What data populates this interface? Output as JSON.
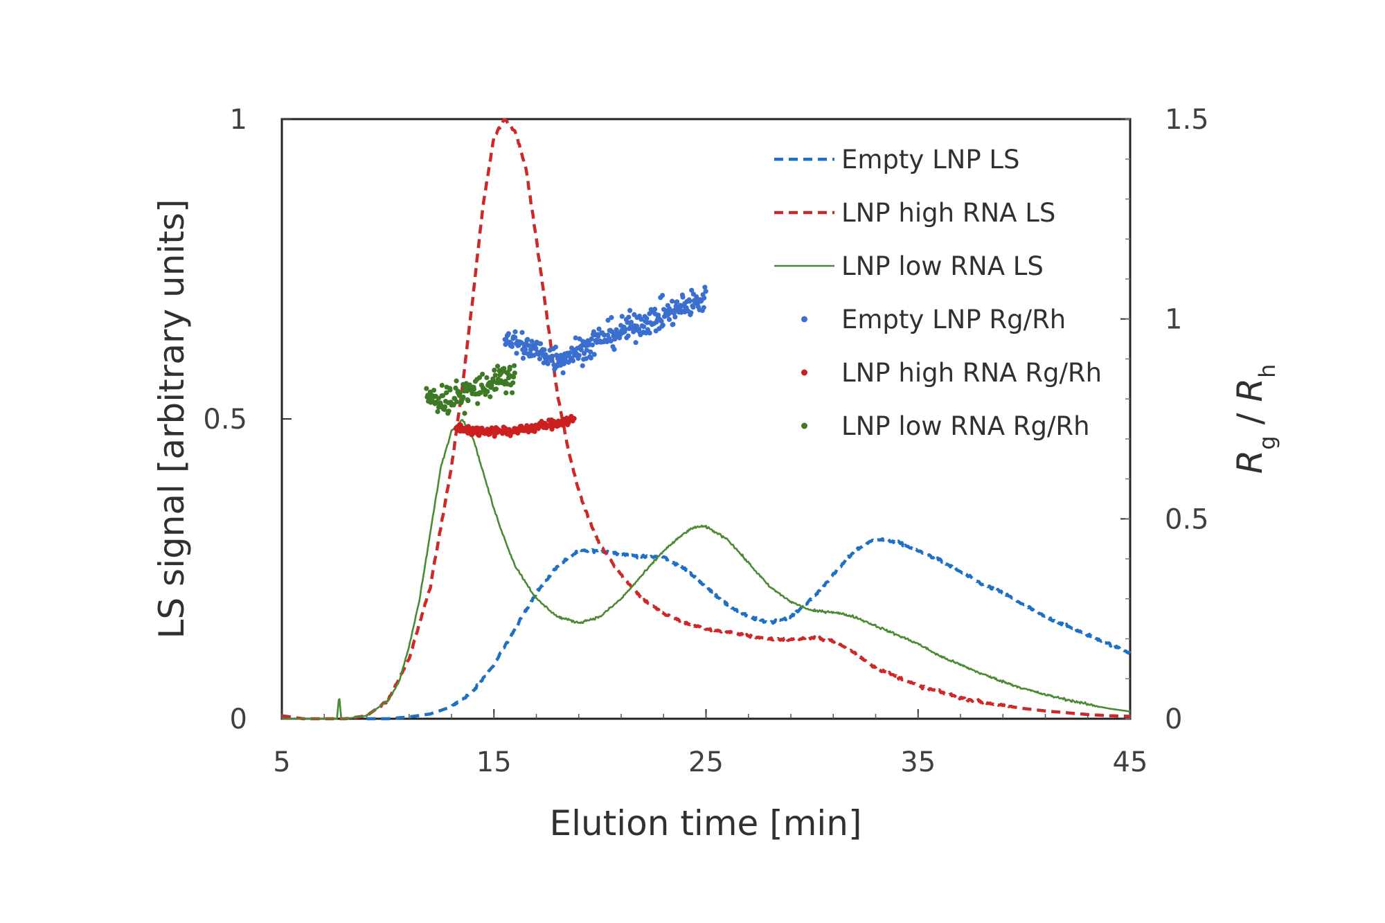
{
  "chart_data": {
    "type": "line",
    "xlabel": "Elution time [min]",
    "ylabel": "LS signal [arbitrary units]",
    "y2label_main": "R",
    "y2label_sub1": "g",
    "y2label_sep": " / ",
    "y2label_sub2": "h",
    "xlim": [
      5,
      45
    ],
    "ylim": [
      0,
      1
    ],
    "y2lim": [
      0,
      1.5
    ],
    "xticks": [
      "5",
      "15",
      "25",
      "35",
      "45"
    ],
    "yticks": [
      "0",
      "0.5",
      "1"
    ],
    "y2ticks": [
      "0",
      "0.5",
      "1",
      "1.5"
    ],
    "grid": false,
    "legend_position": "top-right",
    "series": [
      {
        "name": "Empty LNP LS",
        "kind": "line",
        "style": "dashed",
        "axis": "left",
        "color": "#1f6fc4",
        "x": [
          9,
          10,
          11,
          12,
          13,
          14,
          15,
          16,
          17,
          18,
          19,
          20,
          21,
          22,
          23,
          24,
          25,
          26,
          27,
          28,
          29,
          30,
          31,
          32,
          33,
          34,
          35,
          36,
          37,
          38,
          39,
          40,
          41,
          42,
          43,
          44,
          45
        ],
        "values": [
          0.0,
          0.0,
          0.003,
          0.008,
          0.02,
          0.045,
          0.09,
          0.15,
          0.21,
          0.255,
          0.28,
          0.28,
          0.275,
          0.27,
          0.27,
          0.25,
          0.22,
          0.19,
          0.17,
          0.16,
          0.17,
          0.2,
          0.24,
          0.28,
          0.3,
          0.295,
          0.28,
          0.265,
          0.245,
          0.225,
          0.21,
          0.19,
          0.17,
          0.155,
          0.14,
          0.125,
          0.11
        ]
      },
      {
        "name": "LNP high RNA LS",
        "kind": "line",
        "style": "dashed",
        "axis": "left",
        "color": "#cc2a2a",
        "x": [
          5,
          6,
          7,
          8,
          9,
          10,
          11,
          12,
          13,
          13.5,
          14,
          14.5,
          15,
          15.5,
          16,
          16.5,
          17,
          17.5,
          18,
          18.5,
          19,
          19.5,
          20,
          21,
          22,
          23,
          24,
          25,
          26,
          27,
          28,
          29,
          30,
          31,
          32,
          33,
          34,
          35,
          36,
          37,
          38,
          39,
          40,
          41,
          42,
          43,
          44,
          45
        ],
        "values": [
          0.005,
          0.0,
          0.0,
          0.0,
          0.005,
          0.03,
          0.1,
          0.22,
          0.42,
          0.55,
          0.7,
          0.86,
          0.97,
          1.0,
          0.98,
          0.92,
          0.8,
          0.67,
          0.54,
          0.45,
          0.38,
          0.33,
          0.29,
          0.24,
          0.2,
          0.175,
          0.16,
          0.15,
          0.145,
          0.138,
          0.133,
          0.132,
          0.135,
          0.13,
          0.11,
          0.085,
          0.07,
          0.055,
          0.045,
          0.035,
          0.028,
          0.022,
          0.017,
          0.013,
          0.01,
          0.007,
          0.005,
          0.004
        ]
      },
      {
        "name": "LNP low RNA LS",
        "kind": "line",
        "style": "solid",
        "axis": "left",
        "color": "#4a8a32",
        "x": [
          5,
          6,
          7,
          7.6,
          7.7,
          7.8,
          8,
          9,
          10,
          10.5,
          11,
          11.5,
          12,
          12.5,
          13,
          13.5,
          14,
          14.5,
          15,
          15.5,
          16,
          17,
          18,
          19,
          20,
          21,
          22,
          23,
          24,
          24.5,
          25,
          26,
          27,
          28,
          29,
          30,
          31,
          32,
          33,
          34,
          35,
          36,
          37,
          38,
          39,
          40,
          41,
          42,
          43,
          44,
          45
        ],
        "values": [
          0.0,
          0.0,
          0.0,
          0.0,
          0.04,
          0.0,
          0.0,
          0.005,
          0.03,
          0.06,
          0.12,
          0.2,
          0.31,
          0.42,
          0.48,
          0.5,
          0.47,
          0.41,
          0.35,
          0.3,
          0.255,
          0.2,
          0.17,
          0.16,
          0.17,
          0.2,
          0.24,
          0.28,
          0.31,
          0.32,
          0.32,
          0.3,
          0.26,
          0.22,
          0.195,
          0.18,
          0.178,
          0.17,
          0.155,
          0.14,
          0.125,
          0.105,
          0.09,
          0.075,
          0.062,
          0.05,
          0.04,
          0.032,
          0.024,
          0.017,
          0.012
        ]
      },
      {
        "name": "Empty LNP Rg/Rh",
        "kind": "scatter",
        "axis": "right",
        "color": "#3a6fd0",
        "x": [
          15.5,
          16,
          17,
          18,
          19,
          20,
          21,
          22,
          23,
          24,
          25
        ],
        "values": [
          0.96,
          0.94,
          0.92,
          0.9,
          0.92,
          0.95,
          0.97,
          0.99,
          1.01,
          1.03,
          1.05
        ]
      },
      {
        "name": "LNP high RNA Rg/Rh",
        "kind": "scatter",
        "axis": "right",
        "color": "#cc1f1f",
        "x": [
          13.2,
          14,
          15,
          16,
          17,
          18,
          18.8
        ],
        "values": [
          0.73,
          0.72,
          0.72,
          0.72,
          0.73,
          0.74,
          0.75
        ]
      },
      {
        "name": "LNP low RNA Rg/Rh",
        "kind": "scatter",
        "axis": "right",
        "color": "#3e7a26",
        "x": [
          11.8,
          12.5,
          13,
          13.5,
          14,
          14.5,
          15,
          15.5,
          16
        ],
        "values": [
          0.8,
          0.8,
          0.8,
          0.81,
          0.82,
          0.83,
          0.84,
          0.85,
          0.86
        ]
      }
    ]
  }
}
